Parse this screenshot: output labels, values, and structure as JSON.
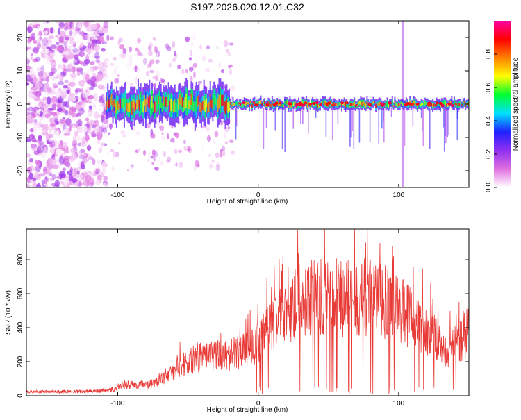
{
  "figure_title": "S197.2026.020.12.01.C32",
  "chart_data": [
    {
      "type": "heatmap",
      "title": "S197.2026.020.12.01.C32",
      "xlabel": "Height of straight line (km)",
      "ylabel": "Frequency (Hz)",
      "xlim": [
        -165,
        150
      ],
      "ylim": [
        -25,
        25
      ],
      "xticks": [
        -100,
        0,
        100
      ],
      "yticks": [
        -20,
        -10,
        0,
        10,
        20
      ],
      "colorbar": {
        "label": "Normalized spectral amplitude",
        "range": [
          0.0,
          1.0
        ],
        "ticks": [
          "0.0",
          "0.2",
          "0.4",
          "0.6",
          "0.8"
        ],
        "tick_values": [
          0.0,
          0.2,
          0.4,
          0.6,
          0.8
        ],
        "colors": [
          "#ffffff",
          "#e070e0",
          "#9030f0",
          "#2020ff",
          "#00e0ff",
          "#00ff30",
          "#ffff00",
          "#ff8000",
          "#ff0000",
          "#ff00a0"
        ]
      },
      "features": {
        "noise_region_x": [
          -165,
          -108
        ],
        "energy_onset_x": -108,
        "ridge_frequency_hz": 0,
        "vertical_streak_x": 103
      }
    },
    {
      "type": "line",
      "xlabel": "Height of straight line (km)",
      "ylabel": "SNR (10 * v/v)",
      "xlim": [
        -165,
        150
      ],
      "ylim": [
        0,
        980
      ],
      "xticks": [
        -100,
        0,
        100
      ],
      "yticks": [
        0,
        200,
        400,
        600,
        800
      ],
      "line_color": "#e83a36",
      "series": [
        {
          "name": "SNR",
          "x": [
            -165,
            -140,
            -120,
            -105,
            -100,
            -95,
            -85,
            -75,
            -65,
            -55,
            -45,
            -35,
            -25,
            -15,
            -5,
            0,
            5,
            10,
            15,
            20,
            25,
            30,
            40,
            50,
            60,
            70,
            80,
            90,
            95,
            100,
            105,
            110,
            115,
            120,
            125,
            130,
            135,
            140,
            145,
            150
          ],
          "y": [
            25,
            25,
            28,
            35,
            55,
            70,
            65,
            75,
            130,
            190,
            240,
            260,
            250,
            270,
            310,
            340,
            400,
            440,
            480,
            520,
            560,
            600,
            620,
            630,
            620,
            640,
            620,
            600,
            570,
            540,
            520,
            480,
            450,
            430,
            380,
            320,
            300,
            320,
            360,
            420
          ]
        }
      ]
    }
  ]
}
